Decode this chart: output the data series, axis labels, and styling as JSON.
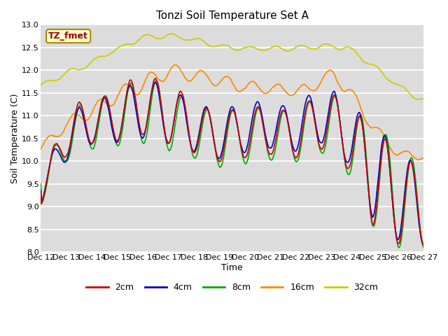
{
  "title": "Tonzi Soil Temperature Set A",
  "xlabel": "Time",
  "ylabel": "Soil Temperature (C)",
  "ylim": [
    8.0,
    13.0
  ],
  "yticks": [
    8.0,
    8.5,
    9.0,
    9.5,
    10.0,
    10.5,
    11.0,
    11.5,
    12.0,
    12.5,
    13.0
  ],
  "colors": {
    "2cm": "#cc0000",
    "4cm": "#0000cc",
    "8cm": "#00aa00",
    "16cm": "#ff8800",
    "32cm": "#cccc00"
  },
  "background_color": "#dcdcdc",
  "annotation_text": "TZ_fmet",
  "annotation_bg": "#ffffcc",
  "annotation_border": "#aa8800",
  "title_fontsize": 11,
  "axis_fontsize": 9,
  "tick_fontsize": 8
}
